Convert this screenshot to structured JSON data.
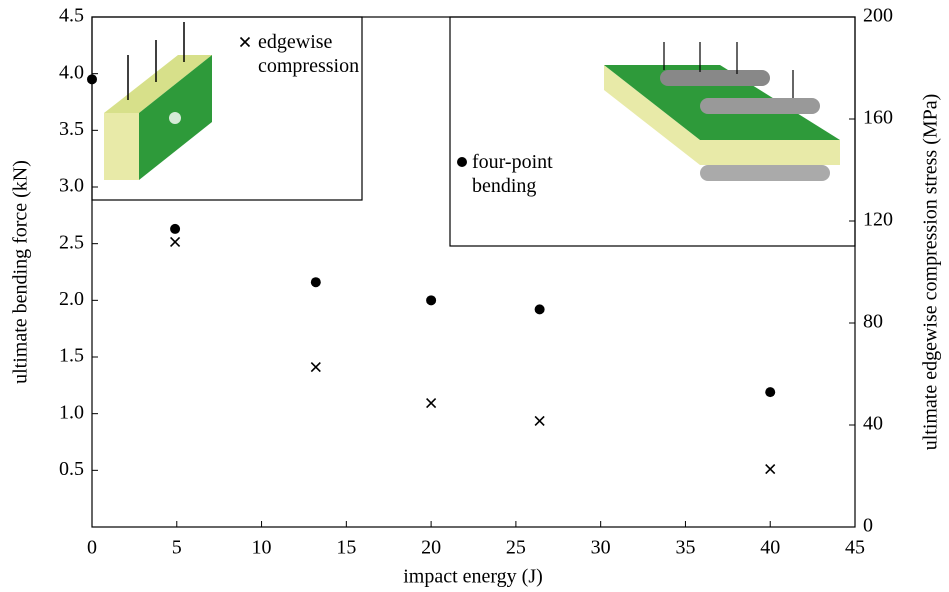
{
  "chart_data": {
    "type": "scatter",
    "xlabel": "impact energy (J)",
    "ylabel": "ultimate bending force (kN)",
    "y2label": "ultimate edgewise compression stress (MPa)",
    "x": [
      0,
      4.9,
      13.2,
      20,
      26.4,
      40
    ],
    "series": [
      {
        "name": "four-point bending",
        "marker": "circle",
        "color": "#000000",
        "axis": "y",
        "values": [
          3.95,
          2.63,
          2.16,
          2.0,
          1.92,
          1.19
        ]
      },
      {
        "name": "edgewise compression",
        "marker": "x",
        "color": "#000000",
        "axis": "y2",
        "values": [
          null,
          111.8,
          62.7,
          48.6,
          41.6,
          22.7
        ]
      }
    ],
    "xlim": [
      0,
      45
    ],
    "xticks": [
      0,
      5,
      10,
      15,
      20,
      25,
      30,
      35,
      40,
      45
    ],
    "ylim": [
      0,
      4.5
    ],
    "yticks": [
      0.5,
      {
        "value": 1,
        "label": "1.0"
      },
      1.5,
      {
        "value": 2,
        "label": "2.0"
      },
      2.5,
      {
        "value": 3,
        "label": "3.0"
      },
      3.5,
      {
        "value": 4,
        "label": "4.0"
      },
      4.5
    ],
    "y2lim": [
      0,
      200
    ],
    "y2ticks": [
      0,
      40,
      80,
      120,
      160,
      200
    ],
    "grid": false
  }
}
